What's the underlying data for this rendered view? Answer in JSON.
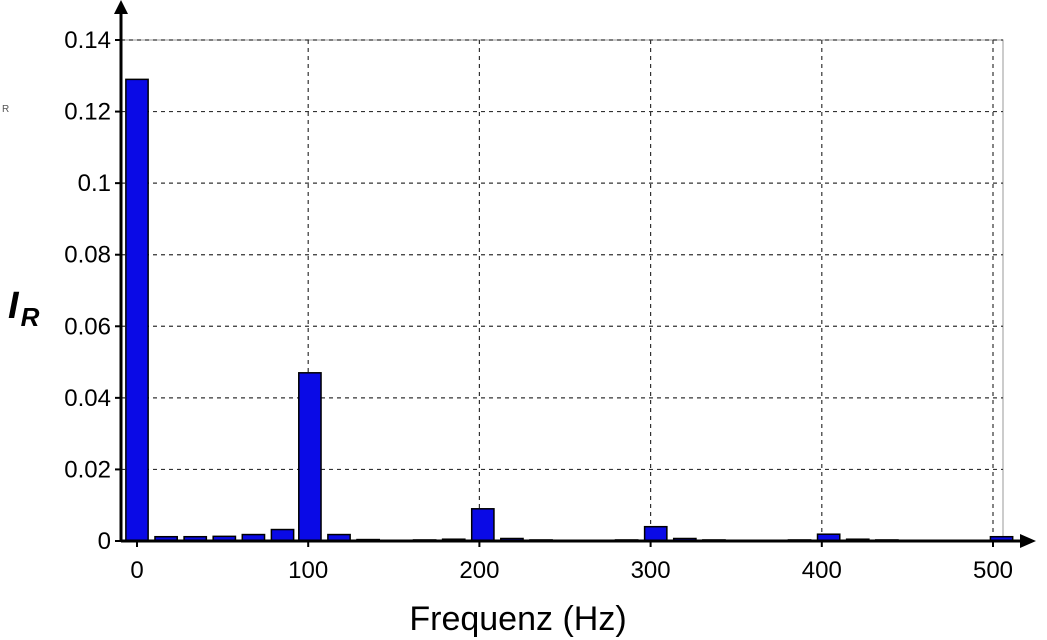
{
  "chart_data": {
    "type": "bar",
    "xlabel": "Frequenz (Hz)",
    "ylabel_main": "I",
    "ylabel_sub": "R",
    "stray_label": "R",
    "xlim": [
      -10,
      505
    ],
    "ylim": [
      0,
      0.14
    ],
    "x_ticks": [
      0,
      100,
      200,
      300,
      400,
      500
    ],
    "x_tick_labels": [
      "0",
      "100",
      "200",
      "300",
      "400",
      "500"
    ],
    "y_ticks": [
      0,
      0.02,
      0.04,
      0.06,
      0.08,
      0.1,
      0.12,
      0.14
    ],
    "y_tick_labels": [
      "0",
      "0.02",
      "0.04",
      "0.06",
      "0.08",
      "0.1",
      "0.12",
      "0.14"
    ],
    "grid": true,
    "bar_width": 13,
    "bars": [
      {
        "x": 0,
        "y": 0.129
      },
      {
        "x": 17,
        "y": 0.0012
      },
      {
        "x": 34,
        "y": 0.0012
      },
      {
        "x": 51,
        "y": 0.0013
      },
      {
        "x": 68,
        "y": 0.0018
      },
      {
        "x": 85,
        "y": 0.0032
      },
      {
        "x": 101,
        "y": 0.047
      },
      {
        "x": 118,
        "y": 0.0018
      },
      {
        "x": 135,
        "y": 0.0004
      },
      {
        "x": 168,
        "y": 0.0003
      },
      {
        "x": 185,
        "y": 0.0005
      },
      {
        "x": 202,
        "y": 0.009
      },
      {
        "x": 219,
        "y": 0.0007
      },
      {
        "x": 236,
        "y": 0.0003
      },
      {
        "x": 286,
        "y": 0.0003
      },
      {
        "x": 303,
        "y": 0.004
      },
      {
        "x": 320,
        "y": 0.0007
      },
      {
        "x": 337,
        "y": 0.0003
      },
      {
        "x": 387,
        "y": 0.0003
      },
      {
        "x": 404,
        "y": 0.0019
      },
      {
        "x": 421,
        "y": 0.0005
      },
      {
        "x": 438,
        "y": 0.0003
      },
      {
        "x": 505,
        "y": 0.0012
      }
    ]
  }
}
